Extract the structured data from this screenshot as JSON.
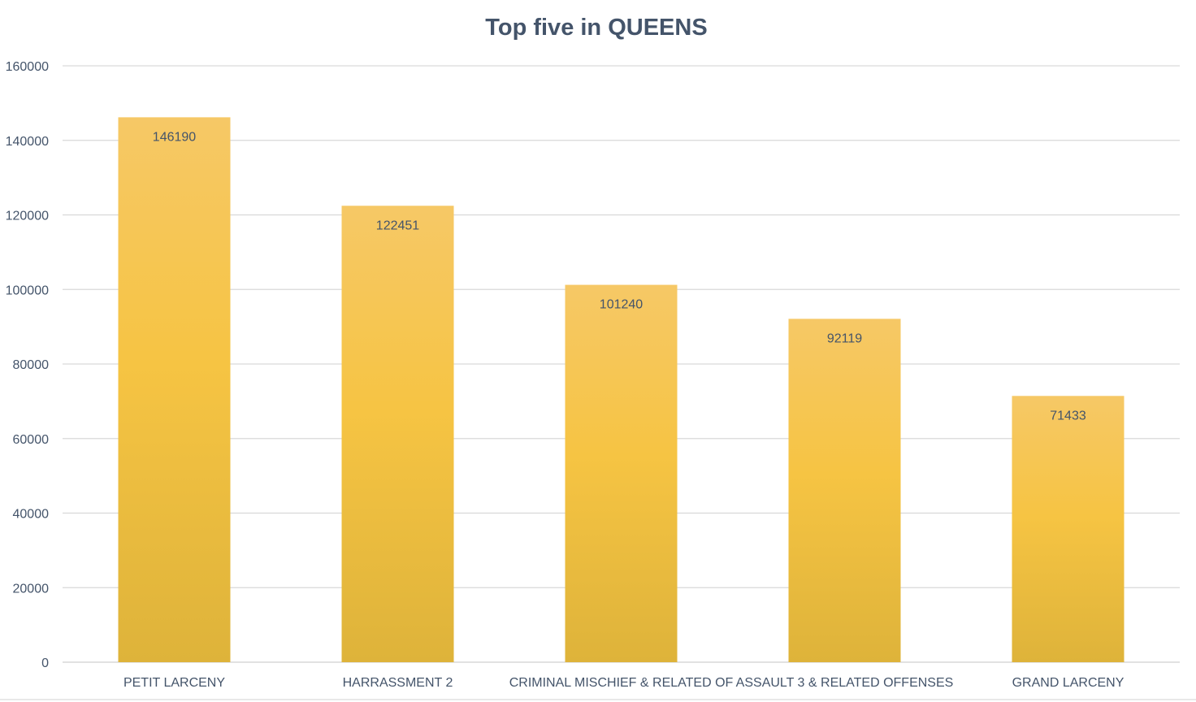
{
  "chart_data": {
    "type": "bar",
    "title": "Top five in QUEENS",
    "xlabel": "",
    "ylabel": "",
    "categories": [
      "PETIT LARCENY",
      "HARRASSMENT 2",
      "CRIMINAL MISCHIEF & RELATED OF",
      "ASSAULT 3 & RELATED OFFENSES",
      "GRAND LARCENY"
    ],
    "values": [
      146190,
      122451,
      101240,
      92119,
      71433
    ],
    "data_labels": [
      "146190",
      "122451",
      "101240",
      "92119",
      "71433"
    ],
    "ylim": [
      0,
      160000
    ],
    "yticks": [
      0,
      20000,
      40000,
      60000,
      80000,
      100000,
      120000,
      140000,
      160000
    ],
    "ytick_labels": [
      "0",
      "20000",
      "40000",
      "60000",
      "80000",
      "100000",
      "120000",
      "140000",
      "160000"
    ],
    "grid": true,
    "legend": "none",
    "colors": {
      "bar_top": "#f6c866",
      "bar_mid": "#f6c443",
      "bar_bottom": "#deb33a",
      "text": "#44546a",
      "grid": "#d9d9d9"
    }
  }
}
